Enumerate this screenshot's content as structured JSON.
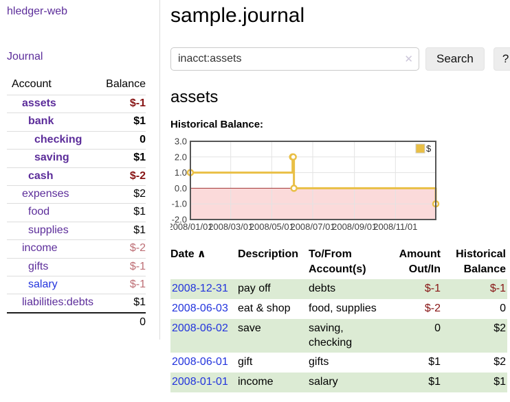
{
  "sidebar": {
    "brand": "hledger-web",
    "journal_link": "Journal",
    "table": {
      "account_header": "Account",
      "balance_header": "Balance",
      "rows": [
        {
          "name": "assets",
          "indent": 1,
          "bold": true,
          "balance": "$-1",
          "dim": false,
          "unvisited": false
        },
        {
          "name": "bank",
          "indent": 2,
          "bold": true,
          "balance": "$1",
          "dim": false,
          "unvisited": false
        },
        {
          "name": "checking",
          "indent": 3,
          "bold": true,
          "balance": "0",
          "dim": false,
          "unvisited": false
        },
        {
          "name": "saving",
          "indent": 3,
          "bold": true,
          "balance": "$1",
          "dim": false,
          "unvisited": false
        },
        {
          "name": "cash",
          "indent": 2,
          "bold": true,
          "balance": "$-2",
          "dim": false,
          "unvisited": false
        },
        {
          "name": "expenses",
          "indent": 1,
          "bold": false,
          "balance": "$2",
          "dim": false,
          "unvisited": false
        },
        {
          "name": "food",
          "indent": 2,
          "bold": false,
          "balance": "$1",
          "dim": false,
          "unvisited": false
        },
        {
          "name": "supplies",
          "indent": 2,
          "bold": false,
          "balance": "$1",
          "dim": false,
          "unvisited": false
        },
        {
          "name": "income",
          "indent": 1,
          "bold": false,
          "balance": "$-2",
          "dim": true,
          "unvisited": false
        },
        {
          "name": "gifts",
          "indent": 2,
          "bold": false,
          "balance": "$-1",
          "dim": true,
          "unvisited": false
        },
        {
          "name": "salary",
          "indent": 2,
          "bold": false,
          "balance": "$-1",
          "dim": true,
          "unvisited": true
        },
        {
          "name": "liabilities:debts",
          "indent": 1,
          "bold": false,
          "balance": "$1",
          "dim": false,
          "unvisited": false
        }
      ],
      "total": "0"
    }
  },
  "header": {
    "title": "sample.journal"
  },
  "search": {
    "value": "inacct:assets",
    "clear_icon": "✕",
    "button": "Search",
    "help_button": "?"
  },
  "main": {
    "account_heading": "assets",
    "chart_label": "Historical Balance:"
  },
  "chart_data": {
    "type": "line",
    "title": "Historical Balance:",
    "legend": "$",
    "legend_position": "top-right",
    "grid": true,
    "ylim": [
      -2,
      3
    ],
    "x_max_day": 365,
    "yticks": [
      {
        "label": "3.0",
        "value": 3
      },
      {
        "label": "2.0",
        "value": 2
      },
      {
        "label": "1.0",
        "value": 1
      },
      {
        "label": "0.0",
        "value": 0
      },
      {
        "label": "-1.0",
        "value": -1
      },
      {
        "label": "-2.0",
        "value": -2
      }
    ],
    "xticks": [
      {
        "label": "2008/01/01",
        "day": 0
      },
      {
        "label": "2008/03/01",
        "day": 60
      },
      {
        "label": "2008/05/01",
        "day": 121
      },
      {
        "label": "2008/07/01",
        "day": 182
      },
      {
        "label": "2008/09/01",
        "day": 244
      },
      {
        "label": "2008/11/01",
        "day": 305
      }
    ],
    "series": [
      {
        "name": "$",
        "color": "#e9bf45",
        "points": [
          {
            "date": "2008-01-01",
            "day": 0,
            "value": 1
          },
          {
            "date": "2008-06-01",
            "day": 152,
            "value": 2
          },
          {
            "date": "2008-06-02",
            "day": 153,
            "value": 2
          },
          {
            "date": "2008-06-03",
            "day": 154,
            "value": 0
          },
          {
            "date": "2008-12-31",
            "day": 365,
            "value": -1
          }
        ]
      }
    ],
    "negative_region_fill": "#fbdada",
    "zero_line_color": "#a03333",
    "gridline_color": "#e3e3e3",
    "border_color": "#555555"
  },
  "register": {
    "columns": [
      "Date",
      "Description",
      "To/From Account(s)",
      "Amount Out/In",
      "Historical Balance"
    ],
    "sort_icon": "∧",
    "rows": [
      {
        "date": "2008-12-31",
        "description": "pay off",
        "accounts": "debts",
        "amount": "$-1",
        "balance": "$-1"
      },
      {
        "date": "2008-06-03",
        "description": "eat & shop",
        "accounts": "food, supplies",
        "amount": "$-2",
        "balance": "0"
      },
      {
        "date": "2008-06-02",
        "description": "save",
        "accounts": "saving, checking",
        "amount": "0",
        "balance": "$2"
      },
      {
        "date": "2008-06-01",
        "description": "gift",
        "accounts": "gifts",
        "amount": "$1",
        "balance": "$2"
      },
      {
        "date": "2008-01-01",
        "description": "income",
        "accounts": "salary",
        "amount": "$1",
        "balance": "$1"
      }
    ]
  }
}
